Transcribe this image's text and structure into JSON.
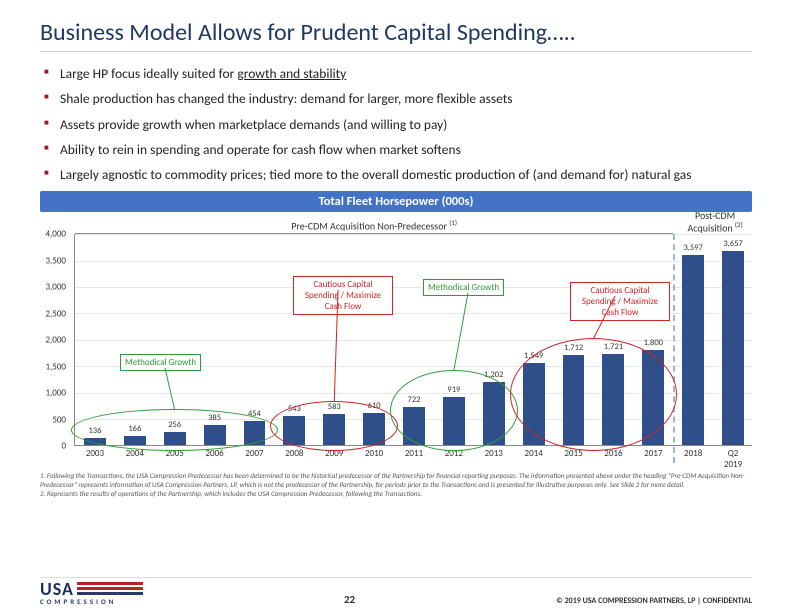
{
  "title": "Business Model Allows for Prudent Capital Spending…..",
  "bullets": [
    "Large HP focus ideally suited for |growth and stability|",
    "Shale production has changed the industry: demand for larger, more flexible assets",
    "Assets provide growth when marketplace demands (and willing to pay)",
    "Ability to rein in spending and operate for cash flow when market softens",
    "Largely agnostic to commodity prices; tied more to the overall domestic production of (and demand for) natural gas"
  ],
  "chart": {
    "title": "Total Fleet Horsepower (000s)",
    "segment_left_label": "Pre-CDM Acquisition Non-Predecessor",
    "segment_left_sup": "(1)",
    "segment_right_label": "Post-CDM Acquisition",
    "segment_right_sup": "(2)",
    "ymax": 4000,
    "ytick_step": 500,
    "bar_color": "#2f4f8a",
    "grid_color": "#e8e8e8",
    "categories": [
      "2003",
      "2004",
      "2005",
      "2006",
      "2007",
      "2008",
      "2009",
      "2010",
      "2011",
      "2012",
      "2013",
      "2014",
      "2015",
      "2016",
      "2017",
      "2018",
      "Q2 2019"
    ],
    "values": [
      136,
      166,
      256,
      385,
      454,
      543,
      583,
      610,
      722,
      919,
      1202,
      1549,
      1712,
      1721,
      1800,
      3597,
      3657
    ],
    "divider_after_index": 15,
    "callouts": [
      {
        "type": "green",
        "label": "Methodical Growth",
        "range": [
          0,
          4
        ]
      },
      {
        "type": "red",
        "label": "Cautious Capital Spending / Maximize Cash Flow",
        "range": [
          5,
          7
        ]
      },
      {
        "type": "green",
        "label": "Methodical Growth",
        "range": [
          8,
          10
        ]
      },
      {
        "type": "red",
        "label": "Cautious Capital Spending / Maximize Cash Flow",
        "range": [
          11,
          14
        ]
      }
    ]
  },
  "footnotes": [
    "1.  Following the Transactions, the USA Compression Predecessor has been determined to be the historical predecessor of the Partnership for financial reporting purposes. The information presented above under the heading \"Pre-CDM Acquisition Non-Predecessor\" represents information of USA Compression Partners, LP, which is not the predecessor of the Partnership, for periods prior to the Transactions and is presented for illustrative purposes only. See Slide 2 for more detail.",
    "2.  Represents the results of operations of the Partnership, which includes the USA Compression Predecessor, following the Transactions."
  ],
  "footer": {
    "logo_top": "USA",
    "logo_bottom": "COMPRESSION",
    "page": "22",
    "copyright": "© 2019 USA COMPRESSION PARTNERS, LP   |   CONFIDENTIAL"
  }
}
